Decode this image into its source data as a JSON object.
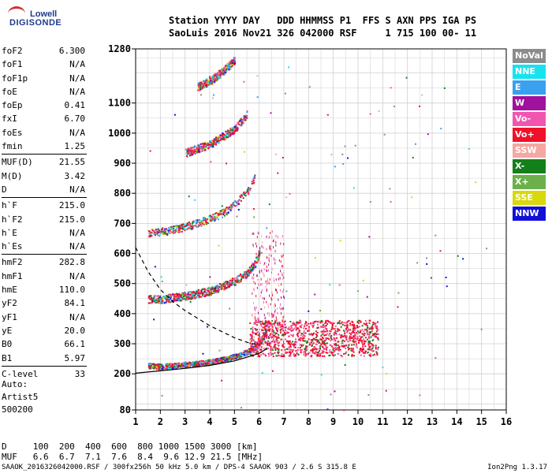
{
  "logo": {
    "line1": "Lowell",
    "line2": "DIGISONDE"
  },
  "header": {
    "line1": "Station YYYY DAY   DDD HHMMSS P1  FFS S AXN PPS IGA PS",
    "line2": "SaoLuis 2016 Nov21 326 042000 RSF     1 715 100 00- 11"
  },
  "params": [
    {
      "k": "foF2",
      "v": "6.300"
    },
    {
      "k": "foF1",
      "v": "N/A"
    },
    {
      "k": "foF1p",
      "v": "N/A"
    },
    {
      "k": "foE",
      "v": "N/A"
    },
    {
      "k": "foEp",
      "v": "0.41"
    },
    {
      "k": "fxI",
      "v": "6.70"
    },
    {
      "k": "foEs",
      "v": "N/A"
    },
    {
      "k": "fmin",
      "v": "1.25"
    },
    {
      "sep": true
    },
    {
      "k": "MUF(D)",
      "v": "21.55"
    },
    {
      "k": "M(D)",
      "v": "3.42"
    },
    {
      "k": "D",
      "v": "N/A"
    },
    {
      "sep": true
    },
    {
      "k": "h`F",
      "v": "215.0"
    },
    {
      "k": "h`F2",
      "v": "215.0"
    },
    {
      "k": "h`E",
      "v": "N/A"
    },
    {
      "k": "h`Es",
      "v": "N/A"
    },
    {
      "sep": true
    },
    {
      "k": "hmF2",
      "v": "282.8"
    },
    {
      "k": "hmF1",
      "v": "N/A"
    },
    {
      "k": "hmE",
      "v": "110.0"
    },
    {
      "k": "yF2",
      "v": "84.1"
    },
    {
      "k": "yF1",
      "v": "N/A"
    },
    {
      "k": "yE",
      "v": "20.0"
    },
    {
      "k": "B0",
      "v": "66.1"
    },
    {
      "k": "B1",
      "v": "5.97"
    },
    {
      "sep": true
    },
    {
      "k": "C-level",
      "v": "33"
    }
  ],
  "auto": {
    "line1": "Auto:",
    "line2": "Artist5",
    "line3": "500200"
  },
  "legend": [
    {
      "label": "NoVal",
      "color": "#8c8c8c"
    },
    {
      "label": "NNE",
      "color": "#17e3f0"
    },
    {
      "label": "E",
      "color": "#3aa0f0"
    },
    {
      "label": "W",
      "color": "#a0119e"
    },
    {
      "label": "Vo-",
      "color": "#f056b0"
    },
    {
      "label": "Vo+",
      "color": "#f0102a"
    },
    {
      "label": "SSW",
      "color": "#f4a8a0"
    },
    {
      "label": "X-",
      "color": "#14801a"
    },
    {
      "label": "X+",
      "color": "#6cb04c"
    },
    {
      "label": "SSE",
      "color": "#d8d80c"
    },
    {
      "label": "NNW",
      "color": "#1010d8"
    }
  ],
  "bottom": {
    "line1": "D     100  200  400  600  800 1000 1500 3000 [km]",
    "line2": "MUF   6.6  6.7  7.1  7.6  8.4  9.6 12.9 21.5 [MHz]"
  },
  "footer": "SAAOK_2016326042000.RSF / 300fx256h 50 kHz 5.0 km / DPS-4 SAAOK 903 / 2.6 S 315.8 E",
  "version": "Ion2Png 1.3.17",
  "chart_data": {
    "type": "scatter",
    "title": "",
    "xlabel": "",
    "ylabel": "",
    "xlim": [
      1,
      16
    ],
    "ylim": [
      80,
      1280
    ],
    "xticks": [
      1,
      2,
      3,
      4,
      5,
      6,
      7,
      8,
      9,
      10,
      11,
      12,
      13,
      14,
      15,
      16
    ],
    "yticks": [
      80,
      200,
      300,
      400,
      500,
      600,
      700,
      800,
      900,
      1000,
      1100,
      1280
    ],
    "grid": true,
    "legend_placement": "right",
    "traces": [
      {
        "name": "O-trace F2 first hop",
        "points": [
          [
            1.5,
            225
          ],
          [
            2.0,
            222
          ],
          [
            2.5,
            225
          ],
          [
            3.0,
            228
          ],
          [
            3.5,
            232
          ],
          [
            4.0,
            237
          ],
          [
            4.5,
            245
          ],
          [
            5.0,
            255
          ],
          [
            5.5,
            270
          ],
          [
            5.8,
            285
          ],
          [
            6.0,
            300
          ],
          [
            6.2,
            330
          ],
          [
            6.3,
            380
          ]
        ]
      },
      {
        "name": "F2 second hop",
        "points": [
          [
            1.5,
            445
          ],
          [
            2.0,
            444
          ],
          [
            2.5,
            450
          ],
          [
            3.0,
            455
          ],
          [
            3.5,
            463
          ],
          [
            4.0,
            472
          ],
          [
            4.5,
            488
          ],
          [
            5.0,
            505
          ],
          [
            5.5,
            530
          ],
          [
            5.8,
            560
          ],
          [
            6.0,
            600
          ]
        ]
      },
      {
        "name": "F2 third hop",
        "points": [
          [
            1.5,
            665
          ],
          [
            2.0,
            668
          ],
          [
            2.5,
            675
          ],
          [
            3.0,
            685
          ],
          [
            3.5,
            697
          ],
          [
            4.0,
            712
          ],
          [
            4.5,
            730
          ],
          [
            5.0,
            760
          ],
          [
            5.5,
            800
          ],
          [
            5.8,
            850
          ]
        ]
      },
      {
        "name": "F2 fourth hop",
        "points": [
          [
            3.0,
            930
          ],
          [
            3.5,
            945
          ],
          [
            4.0,
            960
          ],
          [
            4.5,
            985
          ],
          [
            5.0,
            1010
          ],
          [
            5.5,
            1060
          ]
        ]
      },
      {
        "name": "F2 fifth hop",
        "points": [
          [
            3.5,
            1150
          ],
          [
            4.0,
            1170
          ],
          [
            4.5,
            1200
          ],
          [
            5.0,
            1240
          ]
        ]
      }
    ],
    "profile_curve": {
      "points": [
        [
          1.0,
          202
        ],
        [
          2.0,
          210
        ],
        [
          3.0,
          218
        ],
        [
          4.0,
          228
        ],
        [
          5.0,
          243
        ],
        [
          5.5,
          255
        ],
        [
          6.0,
          268
        ],
        [
          6.3,
          283
        ]
      ]
    },
    "muf_curve": {
      "points": [
        [
          1.0,
          620
        ],
        [
          1.5,
          540
        ],
        [
          2.0,
          480
        ],
        [
          2.5,
          440
        ],
        [
          3.0,
          410
        ],
        [
          3.5,
          385
        ],
        [
          4.0,
          360
        ],
        [
          4.5,
          340
        ],
        [
          5.0,
          320
        ],
        [
          5.5,
          305
        ],
        [
          6.0,
          295
        ]
      ]
    }
  }
}
